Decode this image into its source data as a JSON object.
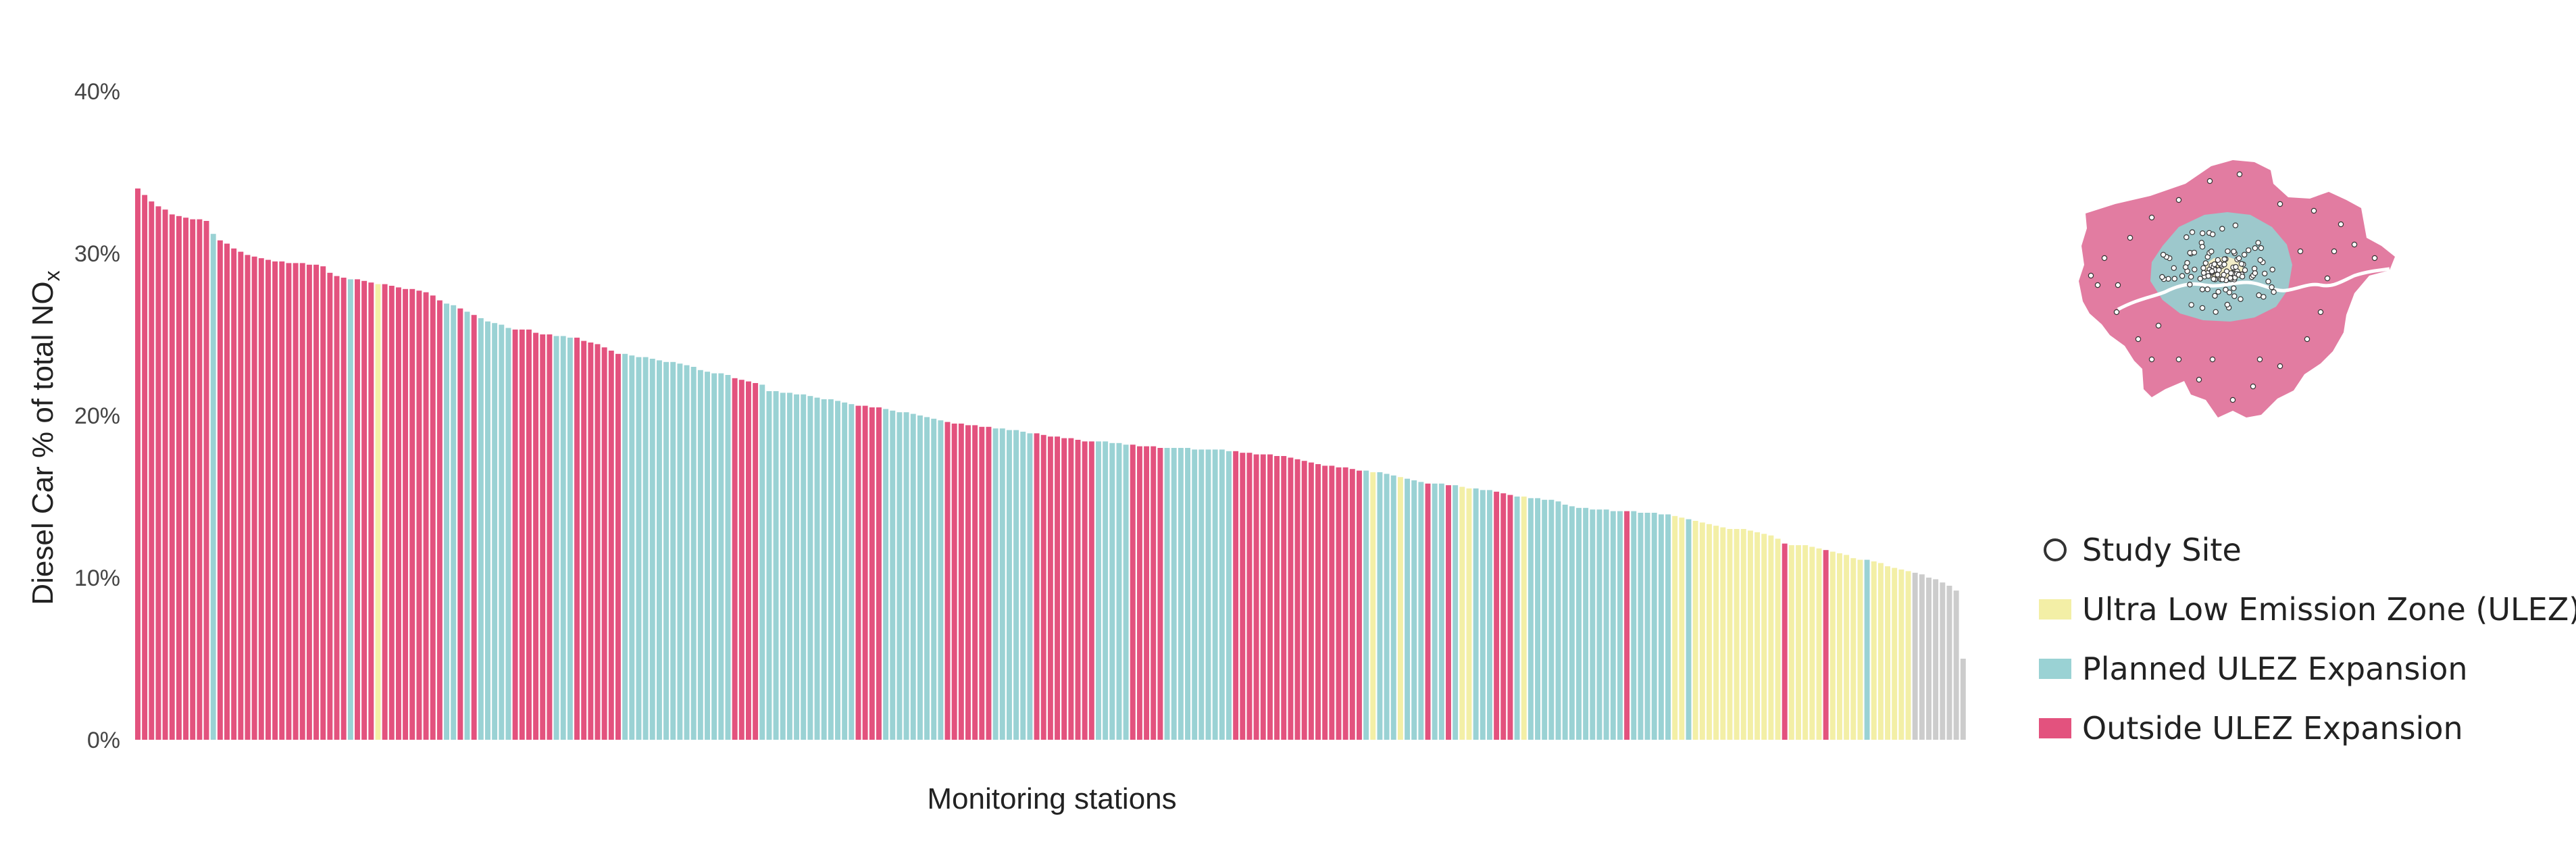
{
  "chart_data": {
    "type": "bar",
    "title": "",
    "xlabel": "Monitoring stations",
    "ylabel_prefix": "Diesel Car % of total NO",
    "ylabel_sub": "x",
    "ylim": [
      0,
      40
    ],
    "yticks": [
      0,
      10,
      20,
      30,
      40
    ],
    "ytick_labels": [
      "0%",
      "10%",
      "20%",
      "30%",
      "40%"
    ],
    "grid": false,
    "legend_placement": "right",
    "colors": {
      "Outside ULEZ Expansion": "#e3527e",
      "Planned ULEZ Expansion": "#9ad2d4",
      "Ultra Low Emission Zone (ULEZ)": "#f3efa6"
    },
    "series": [
      {
        "name": "Outside ULEZ Expansion",
        "code": "O"
      },
      {
        "name": "Planned ULEZ Expansion",
        "code": "P"
      },
      {
        "name": "Ultra Low Emission Zone (ULEZ)",
        "code": "U"
      }
    ],
    "zones": [
      "O",
      "O",
      "O",
      "O",
      "O",
      "O",
      "O",
      "O",
      "O",
      "O",
      "O",
      "P",
      "O",
      "O",
      "O",
      "O",
      "O",
      "O",
      "O",
      "O",
      "O",
      "O",
      "O",
      "O",
      "O",
      "O",
      "O",
      "O",
      "O",
      "O",
      "O",
      "P",
      "O",
      "O",
      "O",
      "U",
      "O",
      "O",
      "O",
      "O",
      "O",
      "O",
      "O",
      "O",
      "O",
      "P",
      "P",
      "O",
      "P",
      "O",
      "P",
      "P",
      "P",
      "P",
      "P",
      "O",
      "O",
      "O",
      "O",
      "O",
      "O",
      "P",
      "P",
      "P",
      "O",
      "O",
      "O",
      "O",
      "O",
      "O",
      "O",
      "P",
      "P",
      "P",
      "P",
      "P",
      "P",
      "P",
      "P",
      "P",
      "P",
      "P",
      "P",
      "P",
      "P",
      "P",
      "P",
      "O",
      "O",
      "O",
      "O",
      "P",
      "P",
      "P",
      "P",
      "P",
      "P",
      "P",
      "P",
      "P",
      "P",
      "P",
      "P",
      "P",
      "P",
      "O",
      "O",
      "O",
      "O",
      "P",
      "P",
      "P",
      "P",
      "P",
      "P",
      "P",
      "P",
      "P",
      "O",
      "O",
      "O",
      "O",
      "O",
      "O",
      "O",
      "P",
      "P",
      "P",
      "P",
      "P",
      "P",
      "O",
      "O",
      "O",
      "O",
      "O",
      "O",
      "O",
      "O",
      "O",
      "P",
      "P",
      "P",
      "P",
      "P",
      "O",
      "O",
      "O",
      "O",
      "O",
      "P",
      "P",
      "P",
      "P",
      "P",
      "P",
      "P",
      "P",
      "P",
      "P",
      "O",
      "O",
      "O",
      "O",
      "O",
      "O",
      "O",
      "O",
      "O",
      "O",
      "O",
      "O",
      "O",
      "O",
      "O",
      "O",
      "O",
      "O",
      "O",
      "P",
      "U",
      "P",
      "P",
      "P",
      "U",
      "P",
      "P",
      "P",
      "O",
      "P",
      "P",
      "O",
      "P",
      "U",
      "U",
      "P",
      "P",
      "P",
      "O",
      "O",
      "O",
      "P",
      "U",
      "P",
      "P",
      "P",
      "P",
      "P",
      "P",
      "P",
      "P",
      "P",
      "P",
      "P",
      "P",
      "P",
      "P",
      "O",
      "P",
      "P",
      "P",
      "P",
      "P",
      "P",
      "U",
      "U",
      "P",
      "U",
      "U",
      "U",
      "U",
      "U",
      "U",
      "U",
      "U",
      "U",
      "U",
      "U",
      "U",
      "U",
      "O",
      "U",
      "U",
      "U",
      "U",
      "U",
      "O",
      "U",
      "U",
      "U",
      "U",
      "U",
      "P",
      "U",
      "U",
      "U",
      "U",
      "U",
      "U"
    ],
    "values": [
      34.0,
      33.6,
      33.2,
      32.9,
      32.7,
      32.4,
      32.3,
      32.2,
      32.1,
      32.1,
      32.0,
      31.2,
      30.8,
      30.6,
      30.3,
      30.1,
      29.9,
      29.8,
      29.7,
      29.6,
      29.5,
      29.5,
      29.4,
      29.4,
      29.4,
      29.3,
      29.3,
      29.2,
      28.8,
      28.6,
      28.5,
      28.4,
      28.4,
      28.3,
      28.2,
      28.1,
      28.1,
      28.0,
      27.9,
      27.8,
      27.8,
      27.7,
      27.6,
      27.4,
      27.1,
      26.9,
      26.8,
      26.6,
      26.4,
      26.2,
      26.0,
      25.8,
      25.7,
      25.6,
      25.4,
      25.3,
      25.3,
      25.3,
      25.1,
      25.0,
      25.0,
      24.9,
      24.9,
      24.8,
      24.8,
      24.6,
      24.5,
      24.4,
      24.2,
      24.0,
      23.8,
      23.8,
      23.7,
      23.6,
      23.6,
      23.5,
      23.4,
      23.3,
      23.3,
      23.2,
      23.1,
      23.0,
      22.8,
      22.7,
      22.6,
      22.6,
      22.5,
      22.3,
      22.2,
      22.1,
      22.0,
      21.9,
      21.5,
      21.5,
      21.4,
      21.4,
      21.3,
      21.3,
      21.2,
      21.1,
      21.0,
      21.0,
      20.9,
      20.8,
      20.7,
      20.6,
      20.6,
      20.5,
      20.5,
      20.4,
      20.3,
      20.2,
      20.2,
      20.1,
      20.0,
      19.9,
      19.8,
      19.7,
      19.6,
      19.5,
      19.5,
      19.4,
      19.4,
      19.3,
      19.3,
      19.2,
      19.2,
      19.1,
      19.1,
      19.0,
      18.9,
      18.9,
      18.8,
      18.7,
      18.7,
      18.6,
      18.6,
      18.5,
      18.4,
      18.4,
      18.4,
      18.4,
      18.3,
      18.3,
      18.2,
      18.2,
      18.1,
      18.1,
      18.1,
      18.0,
      18.0,
      18.0,
      18.0,
      18.0,
      17.9,
      17.9,
      17.9,
      17.9,
      17.9,
      17.8,
      17.8,
      17.7,
      17.7,
      17.6,
      17.6,
      17.6,
      17.5,
      17.5,
      17.4,
      17.3,
      17.2,
      17.1,
      17.0,
      16.9,
      16.9,
      16.8,
      16.8,
      16.7,
      16.6,
      16.6,
      16.5,
      16.5,
      16.4,
      16.3,
      16.2,
      16.1,
      16.0,
      15.9,
      15.8,
      15.8,
      15.8,
      15.7,
      15.7,
      15.6,
      15.5,
      15.5,
      15.4,
      15.4,
      15.3,
      15.2,
      15.1,
      15.0,
      15.0,
      14.9,
      14.9,
      14.8,
      14.8,
      14.7,
      14.5,
      14.4,
      14.3,
      14.3,
      14.2,
      14.2,
      14.2,
      14.1,
      14.1,
      14.1,
      14.1,
      14.0,
      14.0,
      14.0,
      13.9,
      13.9,
      13.8,
      13.7,
      13.6,
      13.5,
      13.4,
      13.3,
      13.2,
      13.1,
      13.0,
      13.0,
      13.0,
      12.9,
      12.8,
      12.7,
      12.6,
      12.4,
      12.1,
      12.0,
      12.0,
      12.0,
      11.9,
      11.8,
      11.7,
      11.6,
      11.5,
      11.4,
      11.2,
      11.1,
      11.1,
      11.0,
      10.9,
      10.7,
      10.6,
      10.5,
      10.4,
      10.3,
      10.2,
      10.0,
      9.9,
      9.7,
      9.5,
      9.2,
      5.0
    ]
  },
  "legend": {
    "items": [
      {
        "kind": "circle",
        "label": "Study Site",
        "color": "#ffffff"
      },
      {
        "kind": "swatch",
        "label": "Ultra Low Emission Zone (ULEZ)",
        "color": "#f3efa6"
      },
      {
        "kind": "swatch",
        "label": "Planned ULEZ Expansion",
        "color": "#9ad2d4"
      },
      {
        "kind": "swatch",
        "label": "Outside ULEZ Expansion",
        "color": "#e3527e"
      }
    ]
  },
  "map": {
    "outer_color": "#e27ca1",
    "middle_color": "#9dc8cc",
    "inner_color": "#f2edc8",
    "river_color": "#ffffff",
    "site_color": "#ffffff"
  }
}
